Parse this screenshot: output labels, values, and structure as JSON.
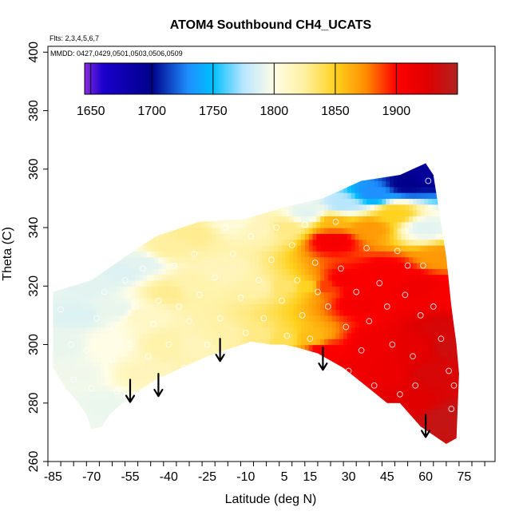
{
  "chart_data": {
    "type": "heatmap",
    "title": "ATOM4 Southbound CH4_UCATS",
    "subtitle_lines": [
      "Flts: 2,3,4,5,6,7",
      "MMDD: 0427,0429,0501,0503,0506,0509"
    ],
    "xlabel": "Latitude (deg N)",
    "ylabel": "Theta (C)",
    "xlim": [
      -87,
      87
    ],
    "ylim": [
      260,
      402
    ],
    "x_ticks": [
      -85,
      -70,
      -55,
      -40,
      -25,
      -10,
      5,
      15,
      30,
      45,
      60,
      75
    ],
    "x_tick_labels": [
      "-85",
      "-70",
      "-55",
      "-40",
      "-25",
      "-10",
      "5",
      "15",
      "30",
      "45",
      "60",
      "75"
    ],
    "y_ticks": [
      260,
      280,
      300,
      320,
      340,
      360,
      380,
      400
    ],
    "y_tick_labels": [
      "260",
      "280",
      "300",
      "320",
      "340",
      "360",
      "380",
      "400"
    ],
    "colorbar": {
      "min": 1645,
      "max": 1950,
      "ticks": [
        1650,
        1700,
        1750,
        1800,
        1850,
        1900
      ],
      "tick_labels": [
        "1650",
        "1700",
        "1750",
        "1800",
        "1850",
        "1900"
      ],
      "stops": [
        [
          1645,
          "#8a2be2"
        ],
        [
          1660,
          "#1a00cc"
        ],
        [
          1700,
          "#00008b"
        ],
        [
          1730,
          "#1e90ff"
        ],
        [
          1750,
          "#00bfff"
        ],
        [
          1775,
          "#b8e6ff"
        ],
        [
          1800,
          "#fffde6"
        ],
        [
          1825,
          "#fff0a0"
        ],
        [
          1850,
          "#ffd21f"
        ],
        [
          1875,
          "#ff8c00"
        ],
        [
          1900,
          "#ff0000"
        ],
        [
          1925,
          "#e00000"
        ],
        [
          1950,
          "#b22222"
        ]
      ]
    },
    "field": {
      "outline": [
        [
          -85,
          292
        ],
        [
          -85,
          318
        ],
        [
          -70,
          322
        ],
        [
          -57,
          330
        ],
        [
          -45,
          337
        ],
        [
          -28,
          342
        ],
        [
          -10,
          343
        ],
        [
          5,
          347
        ],
        [
          20,
          350
        ],
        [
          35,
          356
        ],
        [
          50,
          358
        ],
        [
          60,
          362
        ],
        [
          63,
          358
        ],
        [
          68,
          330
        ],
        [
          70,
          313
        ],
        [
          72,
          300
        ],
        [
          73,
          290
        ],
        [
          72,
          268
        ],
        [
          68,
          266
        ],
        [
          58,
          272
        ],
        [
          50,
          280
        ],
        [
          45,
          280
        ],
        [
          38,
          285
        ],
        [
          28,
          292
        ],
        [
          18,
          297
        ],
        [
          10,
          299
        ],
        [
          5,
          300
        ],
        [
          0,
          300
        ],
        [
          -8,
          301
        ],
        [
          -15,
          299
        ],
        [
          -25,
          296
        ],
        [
          -35,
          292
        ],
        [
          -45,
          288
        ],
        [
          -52,
          284
        ],
        [
          -58,
          280
        ],
        [
          -63,
          276
        ],
        [
          -66,
          272
        ],
        [
          -70,
          271
        ],
        [
          -72,
          276
        ],
        [
          -75,
          280
        ],
        [
          -80,
          285
        ]
      ],
      "anchors": [
        [
          -80,
          300,
          1792
        ],
        [
          -75,
          310,
          1788
        ],
        [
          -70,
          320,
          1790
        ],
        [
          -75,
          290,
          1795
        ],
        [
          -65,
          280,
          1793
        ],
        [
          -65,
          300,
          1800
        ],
        [
          -60,
          312,
          1792
        ],
        [
          -58,
          325,
          1788
        ],
        [
          -50,
          290,
          1815
        ],
        [
          -50,
          310,
          1812
        ],
        [
          -50,
          328,
          1790
        ],
        [
          -40,
          300,
          1822
        ],
        [
          -40,
          318,
          1828
        ],
        [
          -40,
          333,
          1825
        ],
        [
          -30,
          300,
          1815
        ],
        [
          -30,
          320,
          1820
        ],
        [
          -30,
          338,
          1828
        ],
        [
          -18,
          303,
          1822
        ],
        [
          -18,
          325,
          1815
        ],
        [
          -15,
          342,
          1805
        ],
        [
          -5,
          303,
          1830
        ],
        [
          -5,
          320,
          1822
        ],
        [
          -5,
          340,
          1815
        ],
        [
          5,
          302,
          1840
        ],
        [
          5,
          320,
          1835
        ],
        [
          5,
          340,
          1830
        ],
        [
          15,
          302,
          1858
        ],
        [
          15,
          320,
          1848
        ],
        [
          14,
          345,
          1790
        ],
        [
          20,
          298,
          1905
        ],
        [
          20,
          320,
          1890
        ],
        [
          24,
          342,
          1860
        ],
        [
          24,
          336,
          1908
        ],
        [
          28,
          322,
          1905
        ],
        [
          28,
          348,
          1775
        ],
        [
          32,
          292,
          1912
        ],
        [
          35,
          315,
          1908
        ],
        [
          38,
          340,
          1870
        ],
        [
          40,
          352,
          1730
        ],
        [
          40,
          300,
          1912
        ],
        [
          45,
          290,
          1915
        ],
        [
          45,
          325,
          1905
        ],
        [
          48,
          345,
          1850
        ],
        [
          52,
          355,
          1700
        ],
        [
          55,
          300,
          1920
        ],
        [
          55,
          280,
          1925
        ],
        [
          57,
          320,
          1912
        ],
        [
          60,
          340,
          1790
        ],
        [
          62,
          358,
          1690
        ],
        [
          62,
          290,
          1930
        ],
        [
          66,
          305,
          1930
        ],
        [
          66,
          330,
          1870
        ],
        [
          68,
          275,
          1940
        ],
        [
          70,
          300,
          1935
        ],
        [
          70,
          318,
          1905
        ]
      ],
      "markers": [
        [
          -82,
          312
        ],
        [
          -78,
          300
        ],
        [
          -77,
          288
        ],
        [
          -72,
          298
        ],
        [
          -70,
          285
        ],
        [
          -68,
          309
        ],
        [
          -65,
          318
        ],
        [
          -63,
          306
        ],
        [
          -62,
          295
        ],
        [
          -60,
          284
        ],
        [
          -57,
          322
        ],
        [
          -55,
          300
        ],
        [
          -53,
          313
        ],
        [
          -50,
          326
        ],
        [
          -48,
          296
        ],
        [
          -46,
          307
        ],
        [
          -44,
          315
        ],
        [
          -43,
          288
        ],
        [
          -40,
          300
        ],
        [
          -38,
          327
        ],
        [
          -36,
          313
        ],
        [
          -34,
          292
        ],
        [
          -32,
          308
        ],
        [
          -30,
          331
        ],
        [
          -28,
          317
        ],
        [
          -25,
          300
        ],
        [
          -22,
          323
        ],
        [
          -20,
          309
        ],
        [
          -18,
          340
        ],
        [
          -15,
          331
        ],
        [
          -12,
          316
        ],
        [
          -10,
          304
        ],
        [
          -8,
          337
        ],
        [
          -5,
          322
        ],
        [
          -3,
          309
        ],
        [
          0,
          329
        ],
        [
          2,
          340
        ],
        [
          4,
          315
        ],
        [
          6,
          303
        ],
        [
          8,
          334
        ],
        [
          10,
          322
        ],
        [
          12,
          310
        ],
        [
          13,
          341
        ],
        [
          15,
          302
        ],
        [
          17,
          328
        ],
        [
          18,
          318
        ],
        [
          22,
          313
        ],
        [
          25,
          342
        ],
        [
          27,
          326
        ],
        [
          29,
          306
        ],
        [
          30,
          291
        ],
        [
          33,
          318
        ],
        [
          35,
          298
        ],
        [
          37,
          333
        ],
        [
          38,
          308
        ],
        [
          40,
          286
        ],
        [
          42,
          321
        ],
        [
          44,
          279
        ],
        [
          45,
          313
        ],
        [
          47,
          300
        ],
        [
          49,
          332
        ],
        [
          50,
          283
        ],
        [
          52,
          317
        ],
        [
          53,
          327
        ],
        [
          55,
          296
        ],
        [
          56,
          286
        ],
        [
          58,
          310
        ],
        [
          59,
          327
        ],
        [
          61,
          356
        ],
        [
          63,
          313
        ],
        [
          66,
          302
        ],
        [
          69,
          291
        ],
        [
          70,
          278
        ],
        [
          71,
          286
        ]
      ],
      "arrows": [
        [
          -55,
          288
        ],
        [
          -44,
          290
        ],
        [
          -20,
          302
        ],
        [
          20,
          299
        ],
        [
          60,
          276
        ]
      ]
    }
  }
}
